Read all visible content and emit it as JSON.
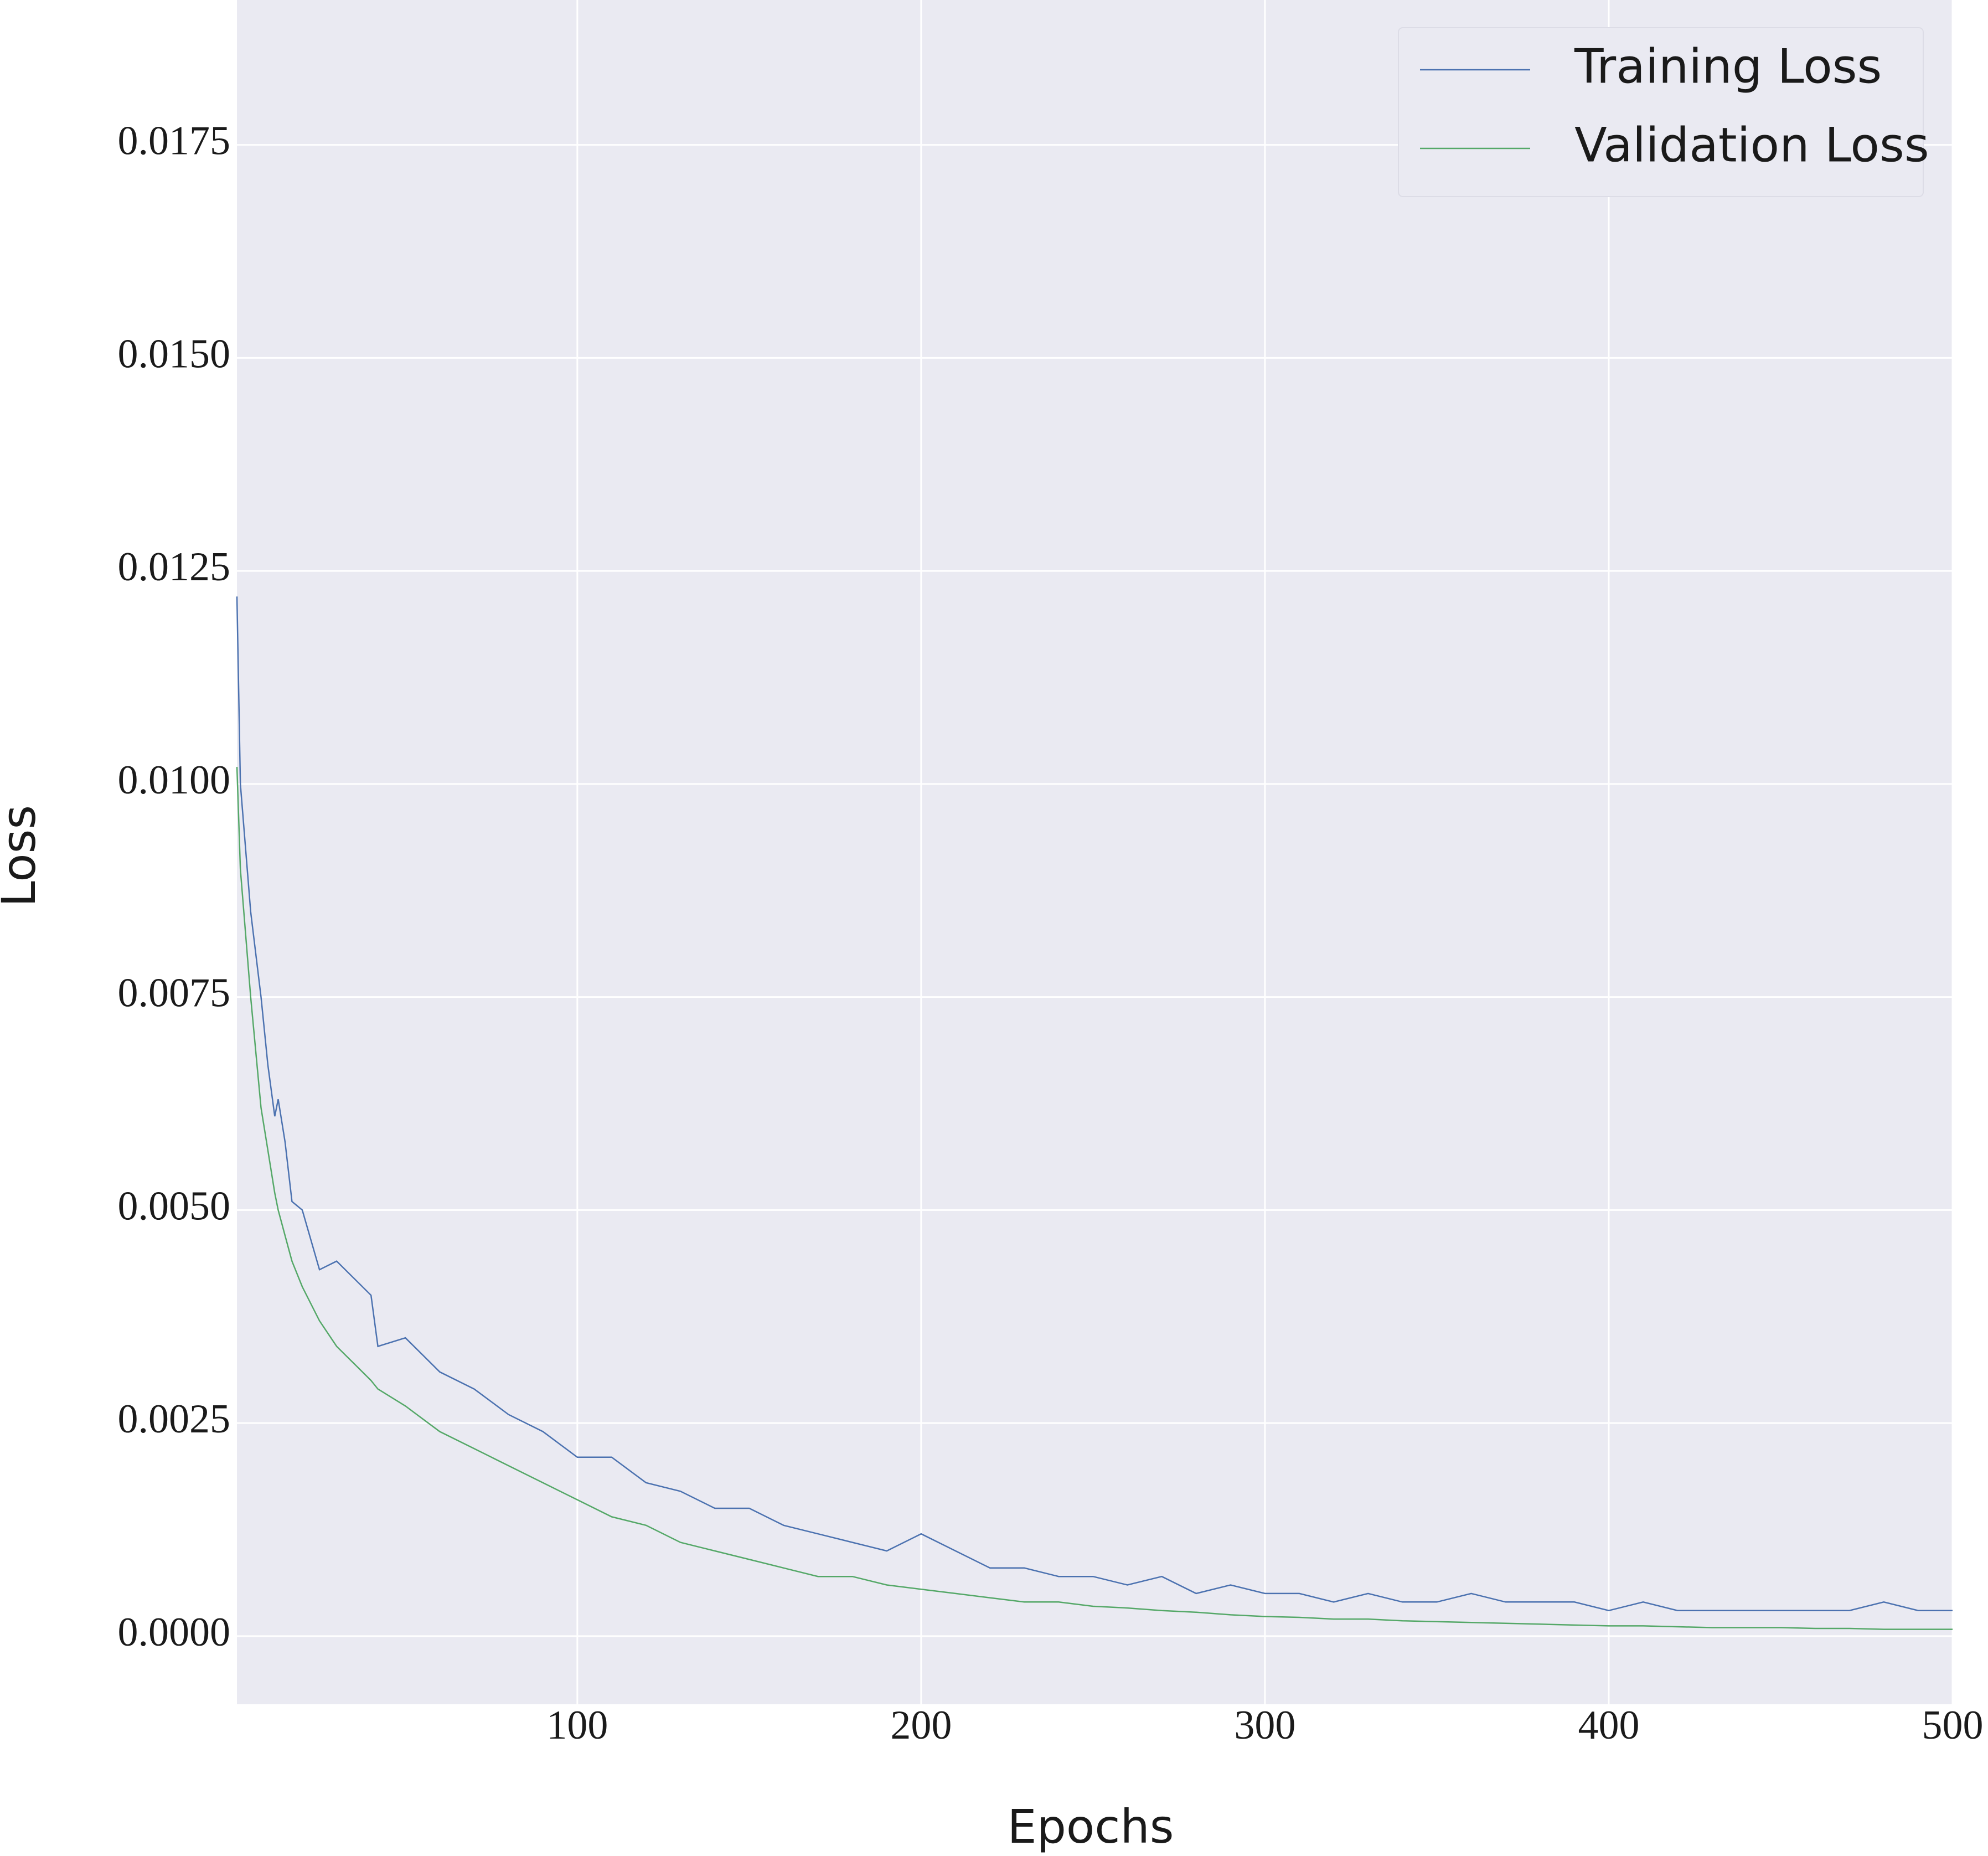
{
  "chart_data": {
    "type": "line",
    "x_label": "Epochs",
    "y_label": "Loss",
    "x": [
      1,
      2,
      5,
      8,
      10,
      12,
      13,
      15,
      17,
      20,
      25,
      30,
      35,
      40,
      42,
      50,
      60,
      70,
      80,
      90,
      100,
      110,
      120,
      130,
      140,
      150,
      160,
      170,
      180,
      190,
      200,
      210,
      220,
      230,
      240,
      250,
      260,
      270,
      280,
      290,
      300,
      310,
      320,
      330,
      340,
      350,
      360,
      370,
      380,
      390,
      400,
      410,
      420,
      430,
      440,
      450,
      460,
      470,
      480,
      490,
      500
    ],
    "series": [
      {
        "name": "Training Loss",
        "color": "#4c72b0",
        "values": [
          0.0122,
          0.01,
          0.0085,
          0.0075,
          0.0067,
          0.0061,
          0.0063,
          0.0058,
          0.0051,
          0.005,
          0.0043,
          0.0044,
          0.0042,
          0.004,
          0.0034,
          0.0035,
          0.0031,
          0.0029,
          0.0026,
          0.0024,
          0.0021,
          0.0021,
          0.0018,
          0.0017,
          0.0015,
          0.0015,
          0.0013,
          0.0012,
          0.0011,
          0.001,
          0.0012,
          0.001,
          0.0008,
          0.0008,
          0.0007,
          0.0007,
          0.0006,
          0.0007,
          0.0005,
          0.0006,
          0.0005,
          0.0005,
          0.0004,
          0.0005,
          0.0004,
          0.0004,
          0.0005,
          0.0004,
          0.0004,
          0.0004,
          0.0003,
          0.0004,
          0.0003,
          0.0003,
          0.0003,
          0.0003,
          0.0003,
          0.0003,
          0.0004,
          0.0003,
          0.0003
        ]
      },
      {
        "name": "Validation Loss",
        "color": "#55a868",
        "values": [
          0.0102,
          0.009,
          0.0075,
          0.0062,
          0.0057,
          0.0052,
          0.005,
          0.0047,
          0.0044,
          0.0041,
          0.0037,
          0.0034,
          0.0032,
          0.003,
          0.0029,
          0.0027,
          0.0024,
          0.0022,
          0.002,
          0.0018,
          0.0016,
          0.0014,
          0.0013,
          0.0011,
          0.001,
          0.0009,
          0.0008,
          0.0007,
          0.0007,
          0.0006,
          0.00055,
          0.0005,
          0.00045,
          0.0004,
          0.0004,
          0.00035,
          0.00033,
          0.0003,
          0.00028,
          0.00025,
          0.00023,
          0.00022,
          0.0002,
          0.0002,
          0.00018,
          0.00017,
          0.00016,
          0.00015,
          0.00014,
          0.00013,
          0.00012,
          0.00012,
          0.00011,
          0.0001,
          0.0001,
          0.0001,
          9e-05,
          9e-05,
          8e-05,
          8e-05,
          8e-05
        ]
      }
    ],
    "xlim": [
      1,
      500
    ],
    "ylim": [
      -0.0008,
      0.0192
    ],
    "xticks": [
      100,
      200,
      300,
      400,
      500
    ],
    "yticks": [
      {
        "value": 0,
        "label": "0.0000"
      },
      {
        "value": 0.0025,
        "label": "0.0025"
      },
      {
        "value": 0.005,
        "label": "0.0050"
      },
      {
        "value": 0.0075,
        "label": "0.0075"
      },
      {
        "value": 0.01,
        "label": "0.0100"
      },
      {
        "value": 0.0125,
        "label": "0.0125"
      },
      {
        "value": 0.015,
        "label": "0.0150"
      },
      {
        "value": 0.0175,
        "label": "0.0175"
      }
    ],
    "grid": true,
    "legend": "upper right"
  }
}
